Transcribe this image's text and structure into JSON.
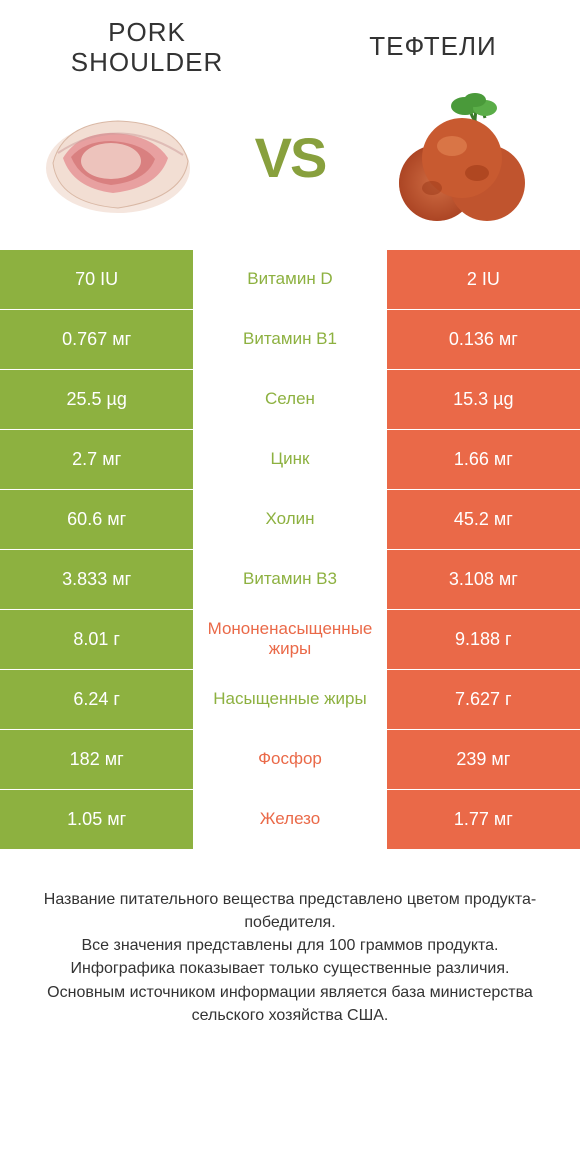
{
  "colors": {
    "green": "#8db140",
    "orange": "#ea6948",
    "text": "#333333",
    "vs": "#88a03d"
  },
  "header": {
    "left_title": "PORK SHOULDER",
    "right_title": "ТЕФТЕЛИ",
    "vs_label": "VS"
  },
  "rows": [
    {
      "label": "Витамин D",
      "left": "70 IU",
      "right": "2 IU",
      "winner": "left"
    },
    {
      "label": "Витамин B1",
      "left": "0.767 мг",
      "right": "0.136 мг",
      "winner": "left"
    },
    {
      "label": "Селен",
      "left": "25.5 µg",
      "right": "15.3 µg",
      "winner": "left"
    },
    {
      "label": "Цинк",
      "left": "2.7 мг",
      "right": "1.66 мг",
      "winner": "left"
    },
    {
      "label": "Холин",
      "left": "60.6 мг",
      "right": "45.2 мг",
      "winner": "left"
    },
    {
      "label": "Витамин B3",
      "left": "3.833 мг",
      "right": "3.108 мг",
      "winner": "left"
    },
    {
      "label": "Мононенасыщенные жиры",
      "left": "8.01 г",
      "right": "9.188 г",
      "winner": "right"
    },
    {
      "label": "Насыщенные жиры",
      "left": "6.24 г",
      "right": "7.627 г",
      "winner": "left"
    },
    {
      "label": "Фосфор",
      "left": "182 мг",
      "right": "239 мг",
      "winner": "right"
    },
    {
      "label": "Железо",
      "left": "1.05 мг",
      "right": "1.77 мг",
      "winner": "right"
    }
  ],
  "footer": {
    "line1": "Название питательного вещества представлено цветом продукта-победителя.",
    "line2": "Все значения представлены для 100 граммов продукта.",
    "line3": "Инфографика показывает только существенные различия.",
    "line4": "Основным источником информации является база министерства сельского хозяйства США."
  }
}
